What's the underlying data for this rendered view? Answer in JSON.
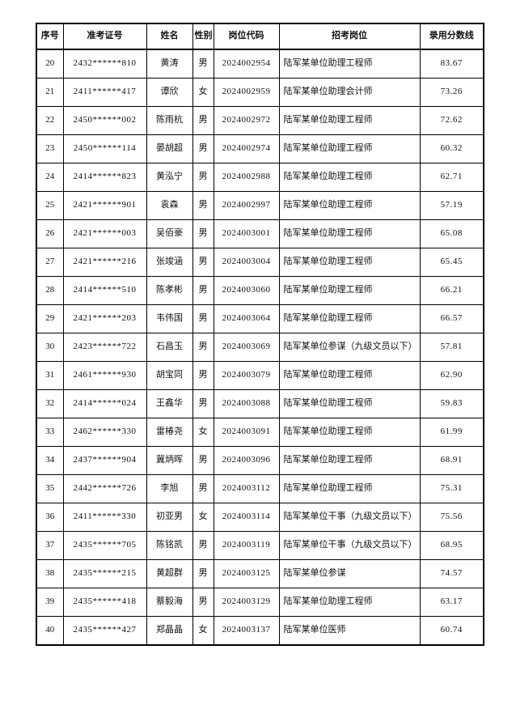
{
  "table": {
    "columns": [
      {
        "key": "index",
        "label": "序号"
      },
      {
        "key": "ticket",
        "label": "准考证号"
      },
      {
        "key": "name",
        "label": "姓名"
      },
      {
        "key": "gender",
        "label": "性别"
      },
      {
        "key": "code",
        "label": "岗位代码"
      },
      {
        "key": "position",
        "label": "招考岗位"
      },
      {
        "key": "score",
        "label": "录用分数线"
      }
    ],
    "rows": [
      [
        "20",
        "2432******810",
        "黄涛",
        "男",
        "2024002954",
        "陆军某单位助理工程师",
        "83.67"
      ],
      [
        "21",
        "2411******417",
        "谭欣",
        "女",
        "2024002959",
        "陆军某单位助理会计师",
        "73.26"
      ],
      [
        "22",
        "2450******002",
        "陈雨杭",
        "男",
        "2024002972",
        "陆军某单位助理工程师",
        "72.62"
      ],
      [
        "23",
        "2450******114",
        "晏胡超",
        "男",
        "2024002974",
        "陆军某单位助理工程师",
        "60.32"
      ],
      [
        "24",
        "2414******823",
        "黄泓宁",
        "男",
        "2024002988",
        "陆军某单位助理工程师",
        "62.71"
      ],
      [
        "25",
        "2421******901",
        "袁森",
        "男",
        "2024002997",
        "陆军某单位助理工程师",
        "57.19"
      ],
      [
        "26",
        "2421******003",
        "吴佰豪",
        "男",
        "2024003001",
        "陆军某单位助理工程师",
        "65.08"
      ],
      [
        "27",
        "2421******216",
        "张竣涵",
        "男",
        "2024003004",
        "陆军某单位助理工程师",
        "65.45"
      ],
      [
        "28",
        "2414******510",
        "陈孝彬",
        "男",
        "2024003060",
        "陆军某单位助理工程师",
        "66.21"
      ],
      [
        "29",
        "2421******203",
        "韦伟国",
        "男",
        "2024003064",
        "陆军某单位助理工程师",
        "66.57"
      ],
      [
        "30",
        "2423******722",
        "石昌玉",
        "男",
        "2024003069",
        "陆军某单位参谋（九级文员以下）",
        "57.81"
      ],
      [
        "31",
        "2461******930",
        "胡宝同",
        "男",
        "2024003079",
        "陆军某单位助理工程师",
        "62.90"
      ],
      [
        "32",
        "2414******024",
        "王鑫华",
        "男",
        "2024003088",
        "陆军某单位助理工程师",
        "59.83"
      ],
      [
        "33",
        "2462******330",
        "雷椿尧",
        "女",
        "2024003091",
        "陆军某单位助理工程师",
        "61.99"
      ],
      [
        "34",
        "2437******904",
        "冀炳晖",
        "男",
        "2024003096",
        "陆军某单位助理工程师",
        "68.91"
      ],
      [
        "35",
        "2442******726",
        "李旭",
        "男",
        "2024003112",
        "陆军某单位助理工程师",
        "75.31"
      ],
      [
        "36",
        "2411******330",
        "初亚男",
        "女",
        "2024003114",
        "陆军某单位干事（九级文员以下）",
        "75.56"
      ],
      [
        "37",
        "2435******705",
        "陈铭凯",
        "男",
        "2024003119",
        "陆军某单位干事（九级文员以下）",
        "68.95"
      ],
      [
        "38",
        "2435******215",
        "黄超群",
        "男",
        "2024003125",
        "陆军某单位参谋",
        "74.57"
      ],
      [
        "39",
        "2435******418",
        "蔡毅海",
        "男",
        "2024003129",
        "陆军某单位助理工程师",
        "63.17"
      ],
      [
        "40",
        "2435******427",
        "郑晶晶",
        "女",
        "2024003137",
        "陆军某单位医师",
        "60.74"
      ]
    ]
  },
  "colors": {
    "page_background": "#ffffff",
    "border": "#000000",
    "text": "#111111"
  }
}
